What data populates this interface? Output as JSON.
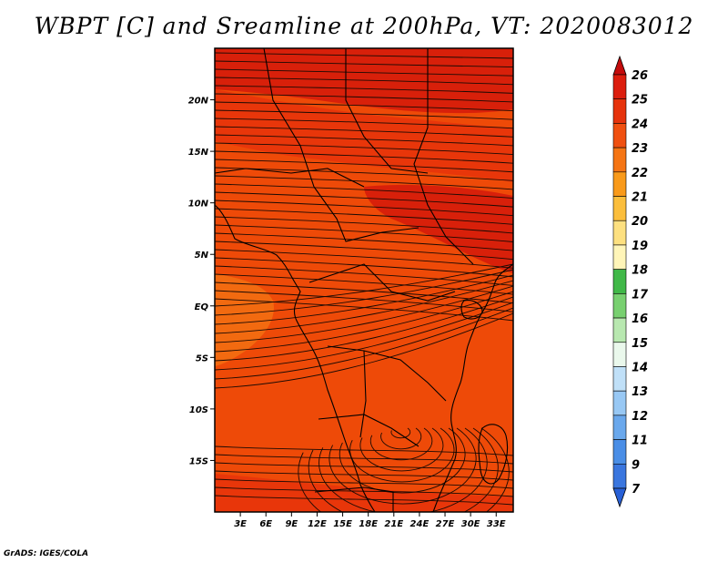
{
  "title": "WBPT [C] and Sreamline at 200hPa, VT: 2020083012",
  "credit": "GrADS: IGES/COLA",
  "map": {
    "lon_range": [
      0,
      35
    ],
    "lat_range": [
      -20,
      25
    ],
    "x_ticks": [
      {
        "value": 3,
        "label": "3E"
      },
      {
        "value": 6,
        "label": "6E"
      },
      {
        "value": 9,
        "label": "9E"
      },
      {
        "value": 12,
        "label": "12E"
      },
      {
        "value": 15,
        "label": "15E"
      },
      {
        "value": 18,
        "label": "18E"
      },
      {
        "value": 21,
        "label": "21E"
      },
      {
        "value": 24,
        "label": "24E"
      },
      {
        "value": 27,
        "label": "27E"
      },
      {
        "value": 30,
        "label": "30E"
      },
      {
        "value": 33,
        "label": "33E"
      }
    ],
    "y_ticks": [
      {
        "value": 20,
        "label": "20N"
      },
      {
        "value": 15,
        "label": "15N"
      },
      {
        "value": 10,
        "label": "10N"
      },
      {
        "value": 5,
        "label": "5N"
      },
      {
        "value": 0,
        "label": "EQ"
      },
      {
        "value": -5,
        "label": "5S"
      },
      {
        "value": -10,
        "label": "10S"
      },
      {
        "value": -15,
        "label": "15S"
      }
    ],
    "field_colors": {
      "low": "#ee4a08",
      "mid": "#e8360a",
      "high": "#d8200a",
      "west": "#f26a10"
    }
  },
  "colorbar": {
    "levels": [
      "26",
      "25",
      "24",
      "23",
      "22",
      "21",
      "20",
      "19",
      "18",
      "17",
      "16",
      "15",
      "14",
      "13",
      "12",
      "11",
      "9",
      "7"
    ],
    "colors": [
      "#c40c0c",
      "#dc1e0e",
      "#e6330c",
      "#f05010",
      "#f57514",
      "#f99a1a",
      "#fbbe3c",
      "#fde080",
      "#fff5b8",
      "#40b848",
      "#78d070",
      "#b8e8b0",
      "#eaf8ec",
      "#c0e0f8",
      "#98c8f4",
      "#6aa8ec",
      "#4a8ee6",
      "#3a76de",
      "#2860d6"
    ]
  }
}
